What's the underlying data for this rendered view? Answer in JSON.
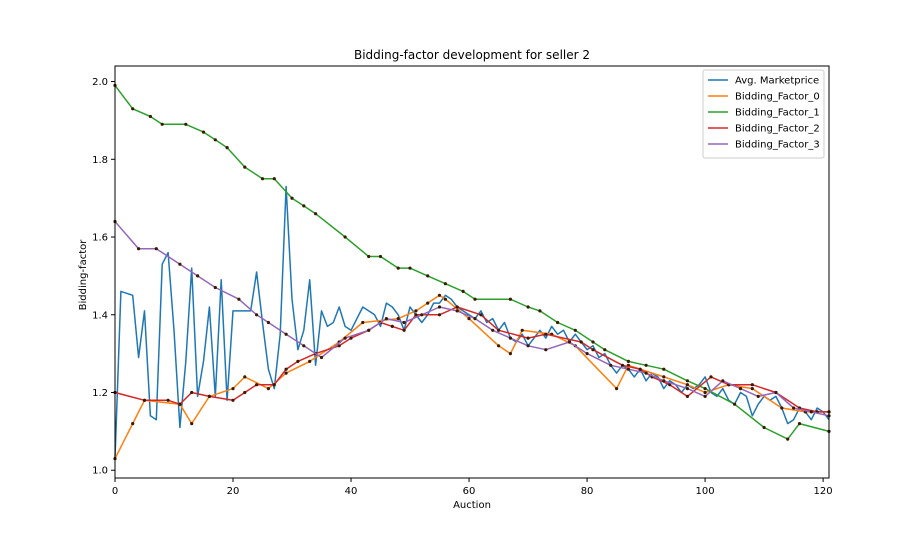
{
  "chart_data": {
    "type": "line",
    "title": "Bidding-factor development for seller 2",
    "xlabel": "Auction",
    "ylabel": "Bidding-factor",
    "xlim": [
      0,
      121
    ],
    "ylim": [
      0.98,
      2.04
    ],
    "x_ticks": [
      0,
      20,
      40,
      60,
      80,
      100,
      120
    ],
    "y_ticks": [
      1.0,
      1.2,
      1.4,
      1.6,
      1.8,
      2.0
    ],
    "legend_position": "top-right",
    "grid": false,
    "series": [
      {
        "name": "Avg. Marketprice",
        "color": "#1f77b4",
        "markers": false,
        "points": [
          [
            0,
            1.03
          ],
          [
            1,
            1.46
          ],
          [
            3,
            1.45
          ],
          [
            4,
            1.29
          ],
          [
            5,
            1.41
          ],
          [
            6,
            1.14
          ],
          [
            7,
            1.13
          ],
          [
            8,
            1.53
          ],
          [
            9,
            1.56
          ],
          [
            10,
            1.36
          ],
          [
            11,
            1.11
          ],
          [
            12,
            1.28
          ],
          [
            13,
            1.52
          ],
          [
            14,
            1.19
          ],
          [
            15,
            1.28
          ],
          [
            16,
            1.42
          ],
          [
            17,
            1.19
          ],
          [
            18,
            1.49
          ],
          [
            19,
            1.18
          ],
          [
            20,
            1.41
          ],
          [
            23,
            1.41
          ],
          [
            24,
            1.51
          ],
          [
            25,
            1.38
          ],
          [
            26,
            1.26
          ],
          [
            27,
            1.21
          ],
          [
            28,
            1.35
          ],
          [
            29,
            1.73
          ],
          [
            30,
            1.44
          ],
          [
            31,
            1.31
          ],
          [
            32,
            1.36
          ],
          [
            33,
            1.49
          ],
          [
            34,
            1.27
          ],
          [
            35,
            1.41
          ],
          [
            36,
            1.37
          ],
          [
            37,
            1.38
          ],
          [
            38,
            1.42
          ],
          [
            39,
            1.37
          ],
          [
            40,
            1.36
          ],
          [
            42,
            1.42
          ],
          [
            44,
            1.4
          ],
          [
            45,
            1.37
          ],
          [
            46,
            1.43
          ],
          [
            47,
            1.42
          ],
          [
            48,
            1.4
          ],
          [
            49,
            1.36
          ],
          [
            50,
            1.42
          ],
          [
            52,
            1.38
          ],
          [
            53,
            1.4
          ],
          [
            54,
            1.43
          ],
          [
            55,
            1.43
          ],
          [
            56,
            1.45
          ],
          [
            57,
            1.44
          ],
          [
            58,
            1.42
          ],
          [
            60,
            1.4
          ],
          [
            61,
            1.39
          ],
          [
            62,
            1.41
          ],
          [
            63,
            1.38
          ],
          [
            64,
            1.39
          ],
          [
            65,
            1.36
          ],
          [
            66,
            1.38
          ],
          [
            67,
            1.34
          ],
          [
            68,
            1.33
          ],
          [
            69,
            1.35
          ],
          [
            70,
            1.32
          ],
          [
            72,
            1.36
          ],
          [
            73,
            1.34
          ],
          [
            74,
            1.37
          ],
          [
            75,
            1.35
          ],
          [
            76,
            1.36
          ],
          [
            77,
            1.33
          ],
          [
            78,
            1.35
          ],
          [
            79,
            1.33
          ],
          [
            80,
            1.31
          ],
          [
            81,
            1.32
          ],
          [
            82,
            1.29
          ],
          [
            83,
            1.3
          ],
          [
            84,
            1.27
          ],
          [
            85,
            1.25
          ],
          [
            86,
            1.27
          ],
          [
            87,
            1.26
          ],
          [
            88,
            1.24
          ],
          [
            89,
            1.26
          ],
          [
            90,
            1.23
          ],
          [
            91,
            1.25
          ],
          [
            92,
            1.24
          ],
          [
            93,
            1.21
          ],
          [
            94,
            1.23
          ],
          [
            95,
            1.22
          ],
          [
            96,
            1.2
          ],
          [
            97,
            1.22
          ],
          [
            98,
            1.21
          ],
          [
            99,
            1.22
          ],
          [
            100,
            1.24
          ],
          [
            101,
            1.2
          ],
          [
            102,
            1.19
          ],
          [
            103,
            1.21
          ],
          [
            104,
            1.18
          ],
          [
            105,
            1.17
          ],
          [
            106,
            1.2
          ],
          [
            107,
            1.19
          ],
          [
            108,
            1.14
          ],
          [
            109,
            1.17
          ],
          [
            110,
            1.19
          ],
          [
            111,
            1.18
          ],
          [
            112,
            1.19
          ],
          [
            113,
            1.16
          ],
          [
            114,
            1.12
          ],
          [
            115,
            1.13
          ],
          [
            116,
            1.16
          ],
          [
            117,
            1.15
          ],
          [
            118,
            1.13
          ],
          [
            119,
            1.16
          ],
          [
            120,
            1.15
          ],
          [
            121,
            1.13
          ]
        ]
      },
      {
        "name": "Bidding_Factor_0",
        "color": "#ff7f0e",
        "markers": true,
        "points": [
          [
            0,
            1.03
          ],
          [
            3,
            1.12
          ],
          [
            5,
            1.18
          ],
          [
            11,
            1.17
          ],
          [
            13,
            1.12
          ],
          [
            16,
            1.19
          ],
          [
            20,
            1.21
          ],
          [
            22,
            1.24
          ],
          [
            26,
            1.21
          ],
          [
            29,
            1.25
          ],
          [
            33,
            1.28
          ],
          [
            38,
            1.33
          ],
          [
            42,
            1.38
          ],
          [
            48,
            1.39
          ],
          [
            51,
            1.41
          ],
          [
            53,
            1.43
          ],
          [
            55,
            1.45
          ],
          [
            56,
            1.44
          ],
          [
            60,
            1.39
          ],
          [
            65,
            1.32
          ],
          [
            67,
            1.3
          ],
          [
            69,
            1.36
          ],
          [
            74,
            1.35
          ],
          [
            78,
            1.32
          ],
          [
            85,
            1.21
          ],
          [
            87,
            1.27
          ],
          [
            93,
            1.24
          ],
          [
            97,
            1.22
          ],
          [
            100,
            1.2
          ],
          [
            104,
            1.22
          ],
          [
            108,
            1.21
          ],
          [
            113,
            1.16
          ],
          [
            117,
            1.15
          ],
          [
            121,
            1.15
          ]
        ]
      },
      {
        "name": "Bidding_Factor_1",
        "color": "#2ca02c",
        "markers": true,
        "points": [
          [
            0,
            1.99
          ],
          [
            3,
            1.93
          ],
          [
            6,
            1.91
          ],
          [
            8,
            1.89
          ],
          [
            12,
            1.89
          ],
          [
            15,
            1.87
          ],
          [
            17,
            1.85
          ],
          [
            19,
            1.83
          ],
          [
            22,
            1.78
          ],
          [
            25,
            1.75
          ],
          [
            27,
            1.75
          ],
          [
            30,
            1.7
          ],
          [
            32,
            1.68
          ],
          [
            34,
            1.66
          ],
          [
            39,
            1.6
          ],
          [
            43,
            1.55
          ],
          [
            45,
            1.55
          ],
          [
            48,
            1.52
          ],
          [
            50,
            1.52
          ],
          [
            53,
            1.5
          ],
          [
            56,
            1.48
          ],
          [
            59,
            1.46
          ],
          [
            61,
            1.44
          ],
          [
            67,
            1.44
          ],
          [
            70,
            1.42
          ],
          [
            72,
            1.41
          ],
          [
            75,
            1.38
          ],
          [
            78,
            1.36
          ],
          [
            81,
            1.33
          ],
          [
            83,
            1.31
          ],
          [
            87,
            1.28
          ],
          [
            90,
            1.27
          ],
          [
            93,
            1.26
          ],
          [
            97,
            1.23
          ],
          [
            100,
            1.21
          ],
          [
            105,
            1.17
          ],
          [
            110,
            1.11
          ],
          [
            114,
            1.08
          ],
          [
            116,
            1.12
          ],
          [
            121,
            1.1
          ]
        ]
      },
      {
        "name": "Bidding_Factor_2",
        "color": "#d62728",
        "markers": true,
        "points": [
          [
            0,
            1.2
          ],
          [
            5,
            1.18
          ],
          [
            9,
            1.18
          ],
          [
            11,
            1.17
          ],
          [
            13,
            1.2
          ],
          [
            16,
            1.19
          ],
          [
            20,
            1.18
          ],
          [
            22,
            1.2
          ],
          [
            24,
            1.22
          ],
          [
            27,
            1.22
          ],
          [
            29,
            1.26
          ],
          [
            31,
            1.28
          ],
          [
            34,
            1.3
          ],
          [
            38,
            1.32
          ],
          [
            40,
            1.34
          ],
          [
            43,
            1.36
          ],
          [
            45,
            1.38
          ],
          [
            47,
            1.37
          ],
          [
            49,
            1.36
          ],
          [
            51,
            1.4
          ],
          [
            55,
            1.4
          ],
          [
            58,
            1.42
          ],
          [
            62,
            1.4
          ],
          [
            65,
            1.36
          ],
          [
            70,
            1.34
          ],
          [
            73,
            1.35
          ],
          [
            79,
            1.33
          ],
          [
            81,
            1.31
          ],
          [
            86,
            1.27
          ],
          [
            89,
            1.26
          ],
          [
            91,
            1.24
          ],
          [
            94,
            1.22
          ],
          [
            97,
            1.19
          ],
          [
            101,
            1.24
          ],
          [
            104,
            1.22
          ],
          [
            108,
            1.22
          ],
          [
            112,
            1.2
          ],
          [
            116,
            1.16
          ],
          [
            119,
            1.15
          ],
          [
            121,
            1.15
          ]
        ]
      },
      {
        "name": "Bidding_Factor_3",
        "color": "#9467bd",
        "markers": true,
        "points": [
          [
            0,
            1.64
          ],
          [
            4,
            1.57
          ],
          [
            7,
            1.57
          ],
          [
            11,
            1.53
          ],
          [
            14,
            1.5
          ],
          [
            17,
            1.47
          ],
          [
            21,
            1.44
          ],
          [
            24,
            1.4
          ],
          [
            26,
            1.38
          ],
          [
            29,
            1.35
          ],
          [
            32,
            1.32
          ],
          [
            35,
            1.29
          ],
          [
            39,
            1.34
          ],
          [
            43,
            1.36
          ],
          [
            46,
            1.39
          ],
          [
            49,
            1.38
          ],
          [
            52,
            1.4
          ],
          [
            55,
            1.42
          ],
          [
            58,
            1.41
          ],
          [
            61,
            1.39
          ],
          [
            64,
            1.36
          ],
          [
            67,
            1.34
          ],
          [
            70,
            1.32
          ],
          [
            73,
            1.31
          ],
          [
            77,
            1.33
          ],
          [
            80,
            1.3
          ],
          [
            84,
            1.27
          ],
          [
            87,
            1.26
          ],
          [
            90,
            1.25
          ],
          [
            93,
            1.23
          ],
          [
            97,
            1.21
          ],
          [
            100,
            1.19
          ],
          [
            103,
            1.23
          ],
          [
            106,
            1.21
          ],
          [
            109,
            1.19
          ],
          [
            112,
            1.2
          ],
          [
            115,
            1.16
          ],
          [
            118,
            1.15
          ],
          [
            121,
            1.14
          ]
        ]
      }
    ]
  }
}
